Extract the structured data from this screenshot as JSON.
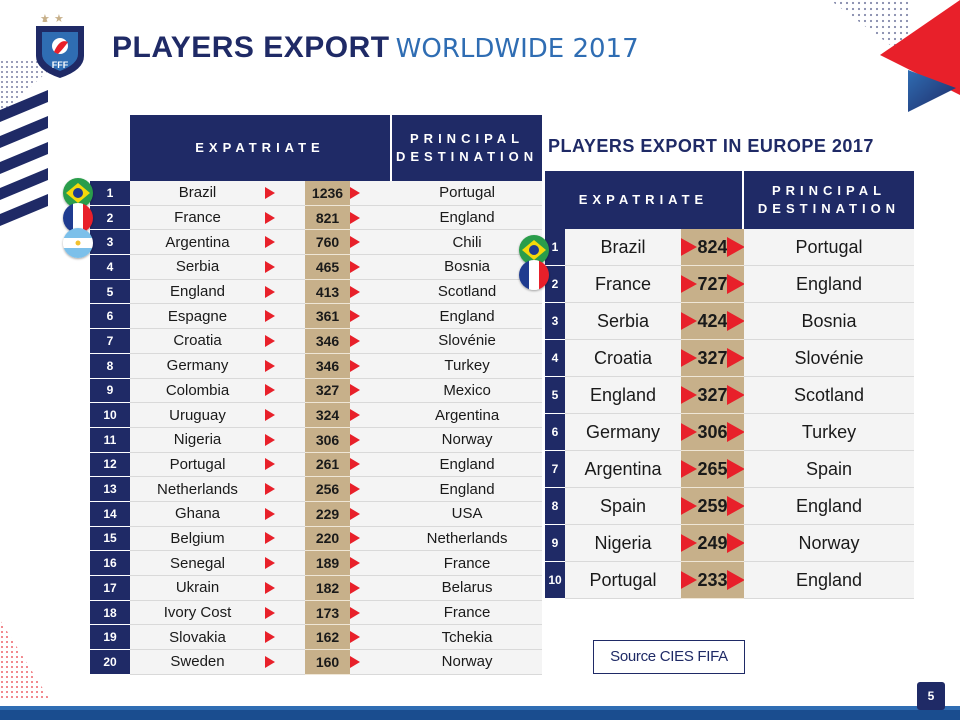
{
  "header": {
    "title_bold": "PLAYERS EXPORT",
    "title_light": "WORLDWIDE 2017",
    "logo_text": "FFF"
  },
  "colors": {
    "navy": "#1f2a66",
    "accent_blue": "#2f6db3",
    "red": "#e8202a",
    "number_cell": "#c7b08a"
  },
  "left_table": {
    "col_expatriate": "EXPATRIATE",
    "col_destination": "PRINCIPAL DESTINATION",
    "rows": [
      {
        "rank": "1",
        "country": "Brazil",
        "count": "1236",
        "destination": "Portugal"
      },
      {
        "rank": "2",
        "country": "France",
        "count": "821",
        "destination": "England"
      },
      {
        "rank": "3",
        "country": "Argentina",
        "count": "760",
        "destination": "Chili"
      },
      {
        "rank": "4",
        "country": "Serbia",
        "count": "465",
        "destination": "Bosnia"
      },
      {
        "rank": "5",
        "country": "England",
        "count": "413",
        "destination": "Scotland"
      },
      {
        "rank": "6",
        "country": "Espagne",
        "count": "361",
        "destination": "England"
      },
      {
        "rank": "7",
        "country": "Croatia",
        "count": "346",
        "destination": "Slovénie"
      },
      {
        "rank": "8",
        "country": "Germany",
        "count": "346",
        "destination": "Turkey"
      },
      {
        "rank": "9",
        "country": "Colombia",
        "count": "327",
        "destination": "Mexico"
      },
      {
        "rank": "10",
        "country": "Uruguay",
        "count": "324",
        "destination": "Argentina"
      },
      {
        "rank": "11",
        "country": "Nigeria",
        "count": "306",
        "destination": "Norway"
      },
      {
        "rank": "12",
        "country": "Portugal",
        "count": "261",
        "destination": "England"
      },
      {
        "rank": "13",
        "country": "Netherlands",
        "count": "256",
        "destination": "England"
      },
      {
        "rank": "14",
        "country": "Ghana",
        "count": "229",
        "destination": "USA"
      },
      {
        "rank": "15",
        "country": "Belgium",
        "count": "220",
        "destination": "Netherlands"
      },
      {
        "rank": "16",
        "country": "Senegal",
        "count": "189",
        "destination": "France"
      },
      {
        "rank": "17",
        "country": "Ukrain",
        "count": "182",
        "destination": "Belarus"
      },
      {
        "rank": "18",
        "country": "Ivory Cost",
        "count": "173",
        "destination": "France"
      },
      {
        "rank": "19",
        "country": "Slovakia",
        "count": "162",
        "destination": "Tchekia"
      },
      {
        "rank": "20",
        "country": "Sweden",
        "count": "160",
        "destination": "Norway"
      }
    ]
  },
  "right_table": {
    "title": "PLAYERS EXPORT IN EUROPE 2017",
    "col_expatriate": "EXPATRIATE",
    "col_destination": "PRINCIPAL DESTINATION",
    "rows": [
      {
        "rank": "1",
        "country": "Brazil",
        "count": "824",
        "destination": "Portugal"
      },
      {
        "rank": "2",
        "country": "France",
        "count": "727",
        "destination": "England"
      },
      {
        "rank": "3",
        "country": "Serbia",
        "count": "424",
        "destination": "Bosnia"
      },
      {
        "rank": "4",
        "country": "Croatia",
        "count": "327",
        "destination": "Slovénie"
      },
      {
        "rank": "5",
        "country": "England",
        "count": "327",
        "destination": "Scotland"
      },
      {
        "rank": "6",
        "country": "Germany",
        "count": "306",
        "destination": "Turkey"
      },
      {
        "rank": "7",
        "country": "Argentina",
        "count": "265",
        "destination": "Spain"
      },
      {
        "rank": "8",
        "country": "Spain",
        "count": "259",
        "destination": "England"
      },
      {
        "rank": "9",
        "country": "Nigeria",
        "count": "249",
        "destination": "Norway"
      },
      {
        "rank": "10",
        "country": "Portugal",
        "count": "233",
        "destination": "England"
      }
    ]
  },
  "footer": {
    "source": "Source CIES FIFA",
    "page_number": "5"
  },
  "flags": {
    "left": [
      "brazil-flag-icon",
      "france-flag-icon",
      "argentina-flag-icon"
    ],
    "right": [
      "brazil-flag-icon",
      "france-flag-icon"
    ]
  }
}
